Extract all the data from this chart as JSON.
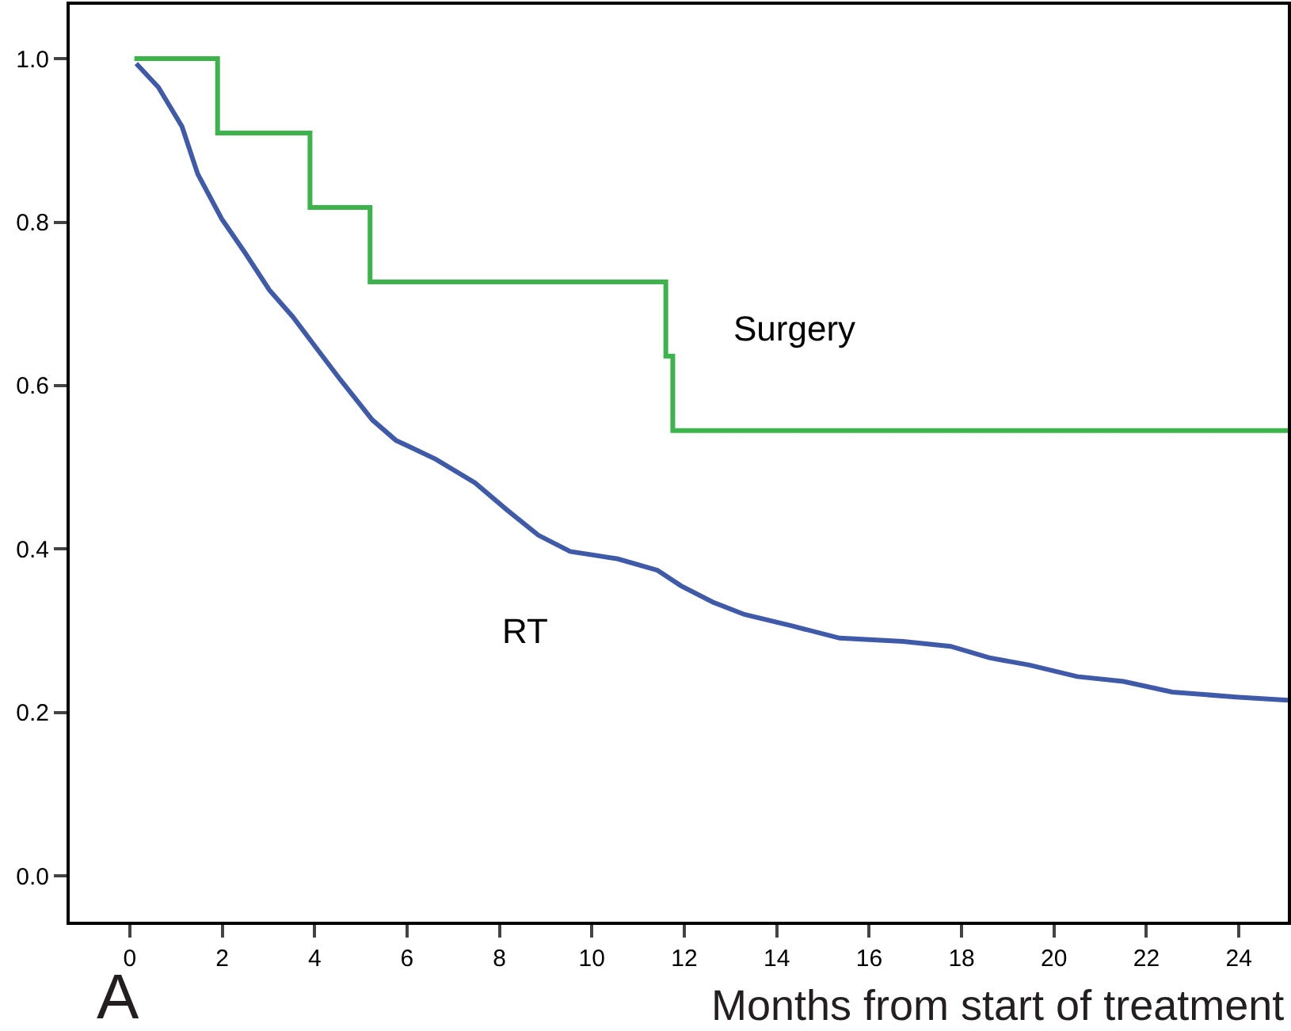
{
  "chart_data": {
    "type": "line",
    "xlabel": "Months from start of treatment",
    "annotations": [
      "A"
    ],
    "xlim": [
      -1.3,
      25.06
    ],
    "ylim": [
      -0.056,
      1.066
    ],
    "xticks": [
      0,
      2,
      4,
      6,
      8,
      10,
      12,
      14,
      16,
      18,
      20,
      22,
      24
    ],
    "yticks": [
      {
        "value": 0,
        "label": "0.0"
      },
      {
        "value": 0.2,
        "label": "0.2"
      },
      {
        "value": 0.4,
        "label": "0.4"
      },
      {
        "value": 0.6,
        "label": "0.6"
      },
      {
        "value": 0.8,
        "label": "0.8"
      },
      {
        "value": 1,
        "label": "1.0"
      }
    ],
    "grid": false,
    "legend": false,
    "marker": "none",
    "line_style": "solid",
    "series": [
      {
        "name": "Surgery",
        "type": "step",
        "color": "#3cb44b",
        "x": [
          0.1,
          1.9,
          3.9,
          5.2,
          11.6,
          11.75,
          25.06
        ],
        "values": [
          1.0,
          0.909,
          0.818,
          0.727,
          0.636,
          0.545,
          0.545
        ]
      },
      {
        "name": "RT",
        "color": "#3f5aa8",
        "x": [
          0.14,
          0.62,
          1.13,
          1.47,
          1.99,
          2.5,
          3.02,
          3.53,
          4.05,
          4.56,
          5.25,
          5.76,
          6.62,
          7.47,
          8.16,
          8.84,
          9.53,
          10.56,
          11.42,
          11.93,
          12.62,
          13.3,
          14.33,
          15.36,
          16.73,
          17.76,
          18.6,
          19.47,
          20.5,
          21.5,
          22.56,
          23.93,
          25.06
        ],
        "values": [
          0.994,
          0.965,
          0.917,
          0.859,
          0.804,
          0.762,
          0.717,
          0.684,
          0.645,
          0.607,
          0.558,
          0.533,
          0.51,
          0.481,
          0.448,
          0.417,
          0.397,
          0.388,
          0.374,
          0.355,
          0.335,
          0.32,
          0.306,
          0.291,
          0.287,
          0.281,
          0.267,
          0.258,
          0.244,
          0.238,
          0.225,
          0.219,
          0.215
        ]
      }
    ]
  }
}
